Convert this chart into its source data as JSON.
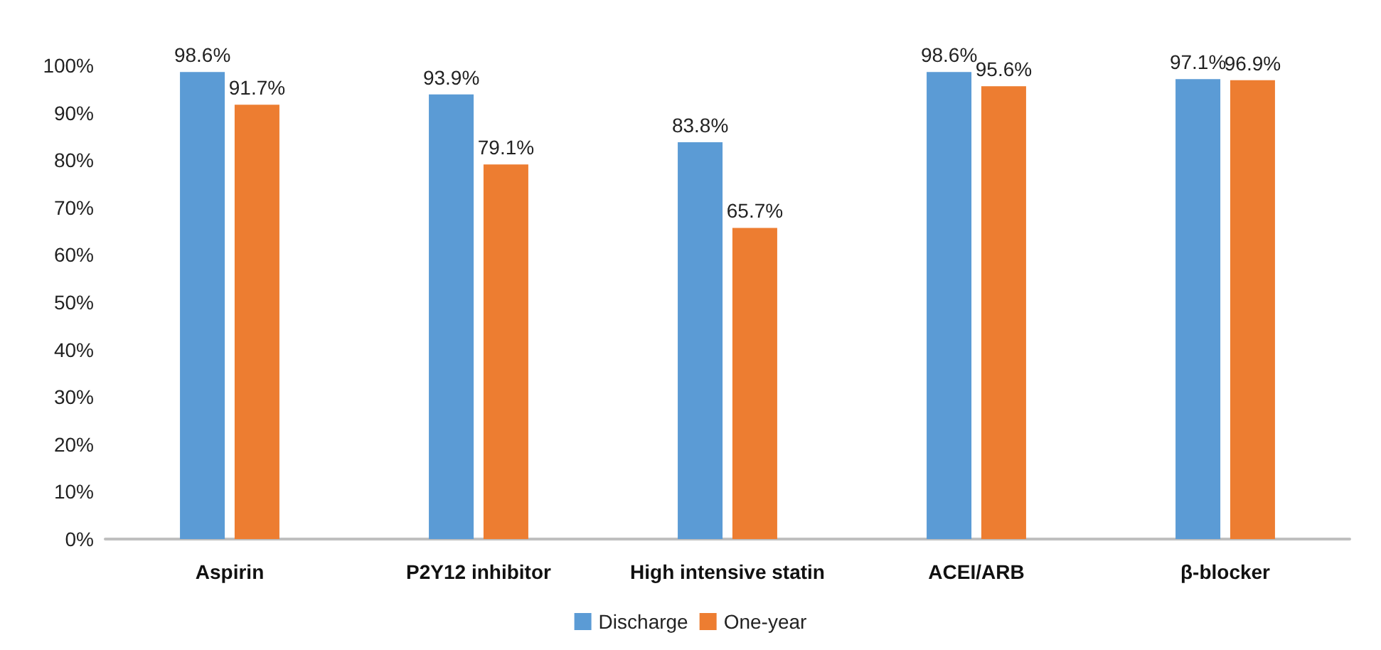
{
  "chart_data": {
    "type": "bar",
    "categories": [
      "Aspirin",
      "P2Y12 inhibitor",
      "High intensive statin",
      "ACEI/ARB",
      "β-blocker"
    ],
    "series": [
      {
        "name": "Discharge",
        "color": "#5b9bd5",
        "values": [
          98.6,
          93.9,
          83.8,
          98.6,
          97.1
        ],
        "value_labels": [
          "98.6%",
          "93.9%",
          "83.8%",
          "98.6%",
          "97.1%"
        ]
      },
      {
        "name": "One-year",
        "color": "#ed7d31",
        "values": [
          91.7,
          79.1,
          65.7,
          95.6,
          96.9
        ],
        "value_labels": [
          "91.7%",
          "79.1%",
          "65.7%",
          "95.6%",
          "96.9%"
        ]
      }
    ],
    "ylim": [
      0,
      100
    ],
    "yticks": [
      {
        "value": 0,
        "label": "0%"
      },
      {
        "value": 10,
        "label": "10%"
      },
      {
        "value": 20,
        "label": "20%"
      },
      {
        "value": 30,
        "label": "30%"
      },
      {
        "value": 40,
        "label": "40%"
      },
      {
        "value": 50,
        "label": "50%"
      },
      {
        "value": 60,
        "label": "60%"
      },
      {
        "value": 70,
        "label": "70%"
      },
      {
        "value": 80,
        "label": "80%"
      },
      {
        "value": 90,
        "label": "90%"
      },
      {
        "value": 100,
        "label": "100%"
      }
    ],
    "grid": false,
    "legend": "bottom"
  }
}
